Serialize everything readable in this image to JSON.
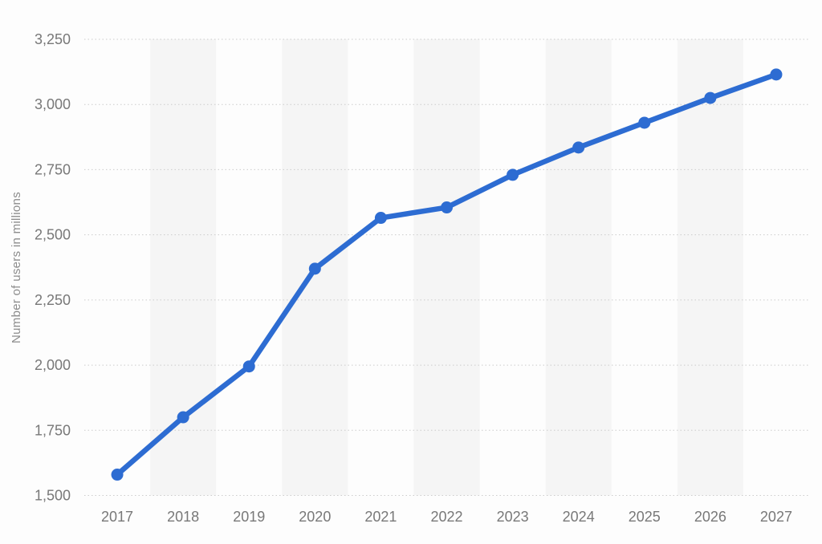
{
  "chart_data": {
    "type": "line",
    "title": "",
    "xlabel": "",
    "ylabel": "Number of users in millions",
    "categories": [
      "2017",
      "2018",
      "2019",
      "2020",
      "2021",
      "2022",
      "2023",
      "2024",
      "2025",
      "2026",
      "2027"
    ],
    "series": [
      {
        "name": "Number of users in millions",
        "color": "#2d6cd2",
        "values": [
          1580,
          1800,
          1995,
          2370,
          2565,
          2605,
          2730,
          2835,
          2930,
          3025,
          3115
        ]
      }
    ],
    "ylim": [
      1500,
      3250
    ],
    "yticks": [
      1500,
      1750,
      2000,
      2250,
      2500,
      2750,
      3000,
      3250
    ],
    "ytick_labels": [
      "1,500",
      "1,750",
      "2,000",
      "2,250",
      "2,500",
      "2,750",
      "3,000",
      "3,250"
    ],
    "grid": "horizontal-dotted",
    "legend_position": "none",
    "plot_background": "alternating vertical stripes behind even years",
    "marker": "filled-circle"
  },
  "style": {
    "accent_blue": "#2d6cd2",
    "label_color": "#787878",
    "axis_title_color": "#8c8c8c",
    "gridline_color": "#cccccc",
    "stripe_color": "#f5f5f5",
    "background": "#fdfdfd"
  }
}
